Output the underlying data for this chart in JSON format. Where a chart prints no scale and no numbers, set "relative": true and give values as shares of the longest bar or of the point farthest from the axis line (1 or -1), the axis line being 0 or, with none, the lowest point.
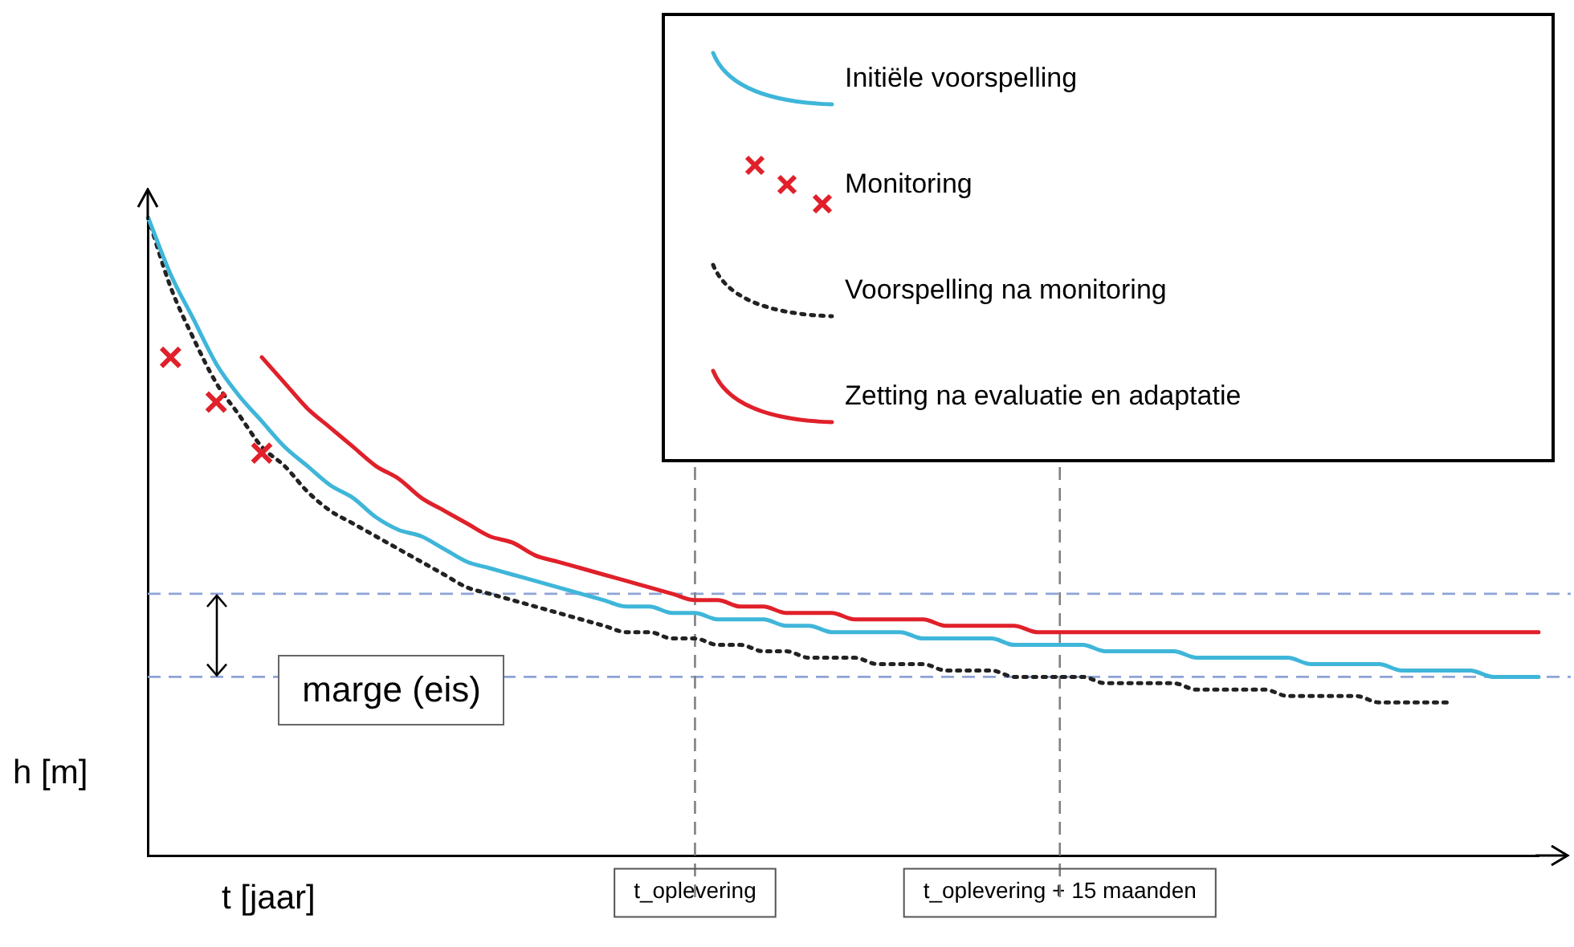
{
  "chart_data": {
    "type": "line",
    "relative": true,
    "xlabel": "t [jaar]",
    "ylabel": "h [m]",
    "legend": "top right",
    "categories": [
      null,
      null,
      null,
      null,
      null,
      null,
      null,
      null,
      null,
      null,
      null,
      null,
      null,
      null,
      null,
      null,
      null,
      null,
      null,
      null,
      null,
      null,
      null,
      null,
      "t_oplevering",
      null,
      null,
      null,
      null,
      null,
      null,
      null,
      null,
      null,
      null,
      null,
      null,
      null,
      null,
      null,
      "t_oplevering + 15 maanden",
      null,
      null,
      null,
      null,
      null,
      null,
      null,
      null,
      null,
      null,
      null,
      null,
      null,
      null,
      null,
      null,
      null,
      null,
      null,
      null,
      null
    ],
    "series": [
      {
        "name": "Initiële voorspelling",
        "line_style": "solid",
        "color": "#3fb6d9",
        "values": [
          1.0,
          0.91,
          0.84,
          0.77,
          0.72,
          0.68,
          0.64,
          0.61,
          0.58,
          0.56,
          0.53,
          0.51,
          0.5,
          0.48,
          0.46,
          0.45,
          0.44,
          0.43,
          0.42,
          0.41,
          0.4,
          0.39,
          0.39,
          0.38,
          0.38,
          0.37,
          0.37,
          0.37,
          0.36,
          0.36,
          0.35,
          0.35,
          0.35,
          0.35,
          0.34,
          0.34,
          0.34,
          0.34,
          0.33,
          0.33,
          0.33,
          0.33,
          0.32,
          0.32,
          0.32,
          0.32,
          0.31,
          0.31,
          0.31,
          0.31,
          0.31,
          0.3,
          0.3,
          0.3,
          0.3,
          0.29,
          0.29,
          0.29,
          0.29,
          0.28,
          0.28,
          0.28
        ]
      },
      {
        "name": "Monitoring",
        "type": "scatter",
        "marker": "cross",
        "color": "#e0202a",
        "values": [
          null,
          0.78,
          null,
          0.71,
          null,
          0.63,
          null,
          null,
          null,
          null,
          null,
          null,
          null,
          null,
          null,
          null,
          null,
          null,
          null,
          null,
          null,
          null,
          null,
          null,
          null,
          null,
          null,
          null,
          null,
          null,
          null,
          null,
          null,
          null,
          null,
          null,
          null,
          null,
          null,
          null,
          null,
          null,
          null,
          null,
          null,
          null,
          null,
          null,
          null,
          null,
          null,
          null,
          null,
          null,
          null,
          null,
          null,
          null,
          null,
          null,
          null,
          null
        ]
      },
      {
        "name": "Voorspelling na monitoring",
        "line_style": "dotted",
        "color": "#222222",
        "values": [
          1.0,
          0.89,
          0.81,
          0.74,
          0.69,
          0.64,
          0.61,
          0.57,
          0.54,
          0.52,
          0.5,
          0.48,
          0.46,
          0.44,
          0.42,
          0.41,
          0.4,
          0.39,
          0.38,
          0.37,
          0.36,
          0.35,
          0.35,
          0.34,
          0.34,
          0.33,
          0.33,
          0.32,
          0.32,
          0.31,
          0.31,
          0.31,
          0.3,
          0.3,
          0.3,
          0.29,
          0.29,
          0.29,
          0.28,
          0.28,
          0.28,
          0.28,
          0.27,
          0.27,
          0.27,
          0.27,
          0.26,
          0.26,
          0.26,
          0.26,
          0.25,
          0.25,
          0.25,
          0.25,
          0.24,
          0.24,
          0.24,
          0.24,
          null,
          null,
          null,
          null
        ]
      },
      {
        "name": "Zetting na evaluatie en adaptatie",
        "line_style": "solid",
        "color": "#e0202a",
        "values": [
          null,
          null,
          null,
          null,
          null,
          0.78,
          0.74,
          0.7,
          0.67,
          0.64,
          0.61,
          0.59,
          0.56,
          0.54,
          0.52,
          0.5,
          0.49,
          0.47,
          0.46,
          0.45,
          0.44,
          0.43,
          0.42,
          0.41,
          0.4,
          0.4,
          0.39,
          0.39,
          0.38,
          0.38,
          0.38,
          0.37,
          0.37,
          0.37,
          0.37,
          0.36,
          0.36,
          0.36,
          0.36,
          0.35,
          0.35,
          0.35,
          0.35,
          0.35,
          0.35,
          0.35,
          0.35,
          0.35,
          0.35,
          0.35,
          0.35,
          0.35,
          0.35,
          0.35,
          0.35,
          0.35,
          0.35,
          0.35,
          0.35,
          0.35,
          0.35,
          0.35
        ]
      }
    ],
    "ref_lines": [
      {
        "axis": "y",
        "value": 0.41,
        "color": "#8ea3d6",
        "line_style": "dashed"
      },
      {
        "axis": "y",
        "value": 0.28,
        "color": "#8ea3d6",
        "line_style": "dashed"
      },
      {
        "axis": "x",
        "value": "t_oplevering",
        "color": "#808080",
        "line_style": "dashed"
      },
      {
        "axis": "x",
        "value": "t_oplevering + 15 maanden",
        "color": "#808080",
        "line_style": "dashed"
      }
    ],
    "annotations": [
      "marge (eis)"
    ]
  }
}
